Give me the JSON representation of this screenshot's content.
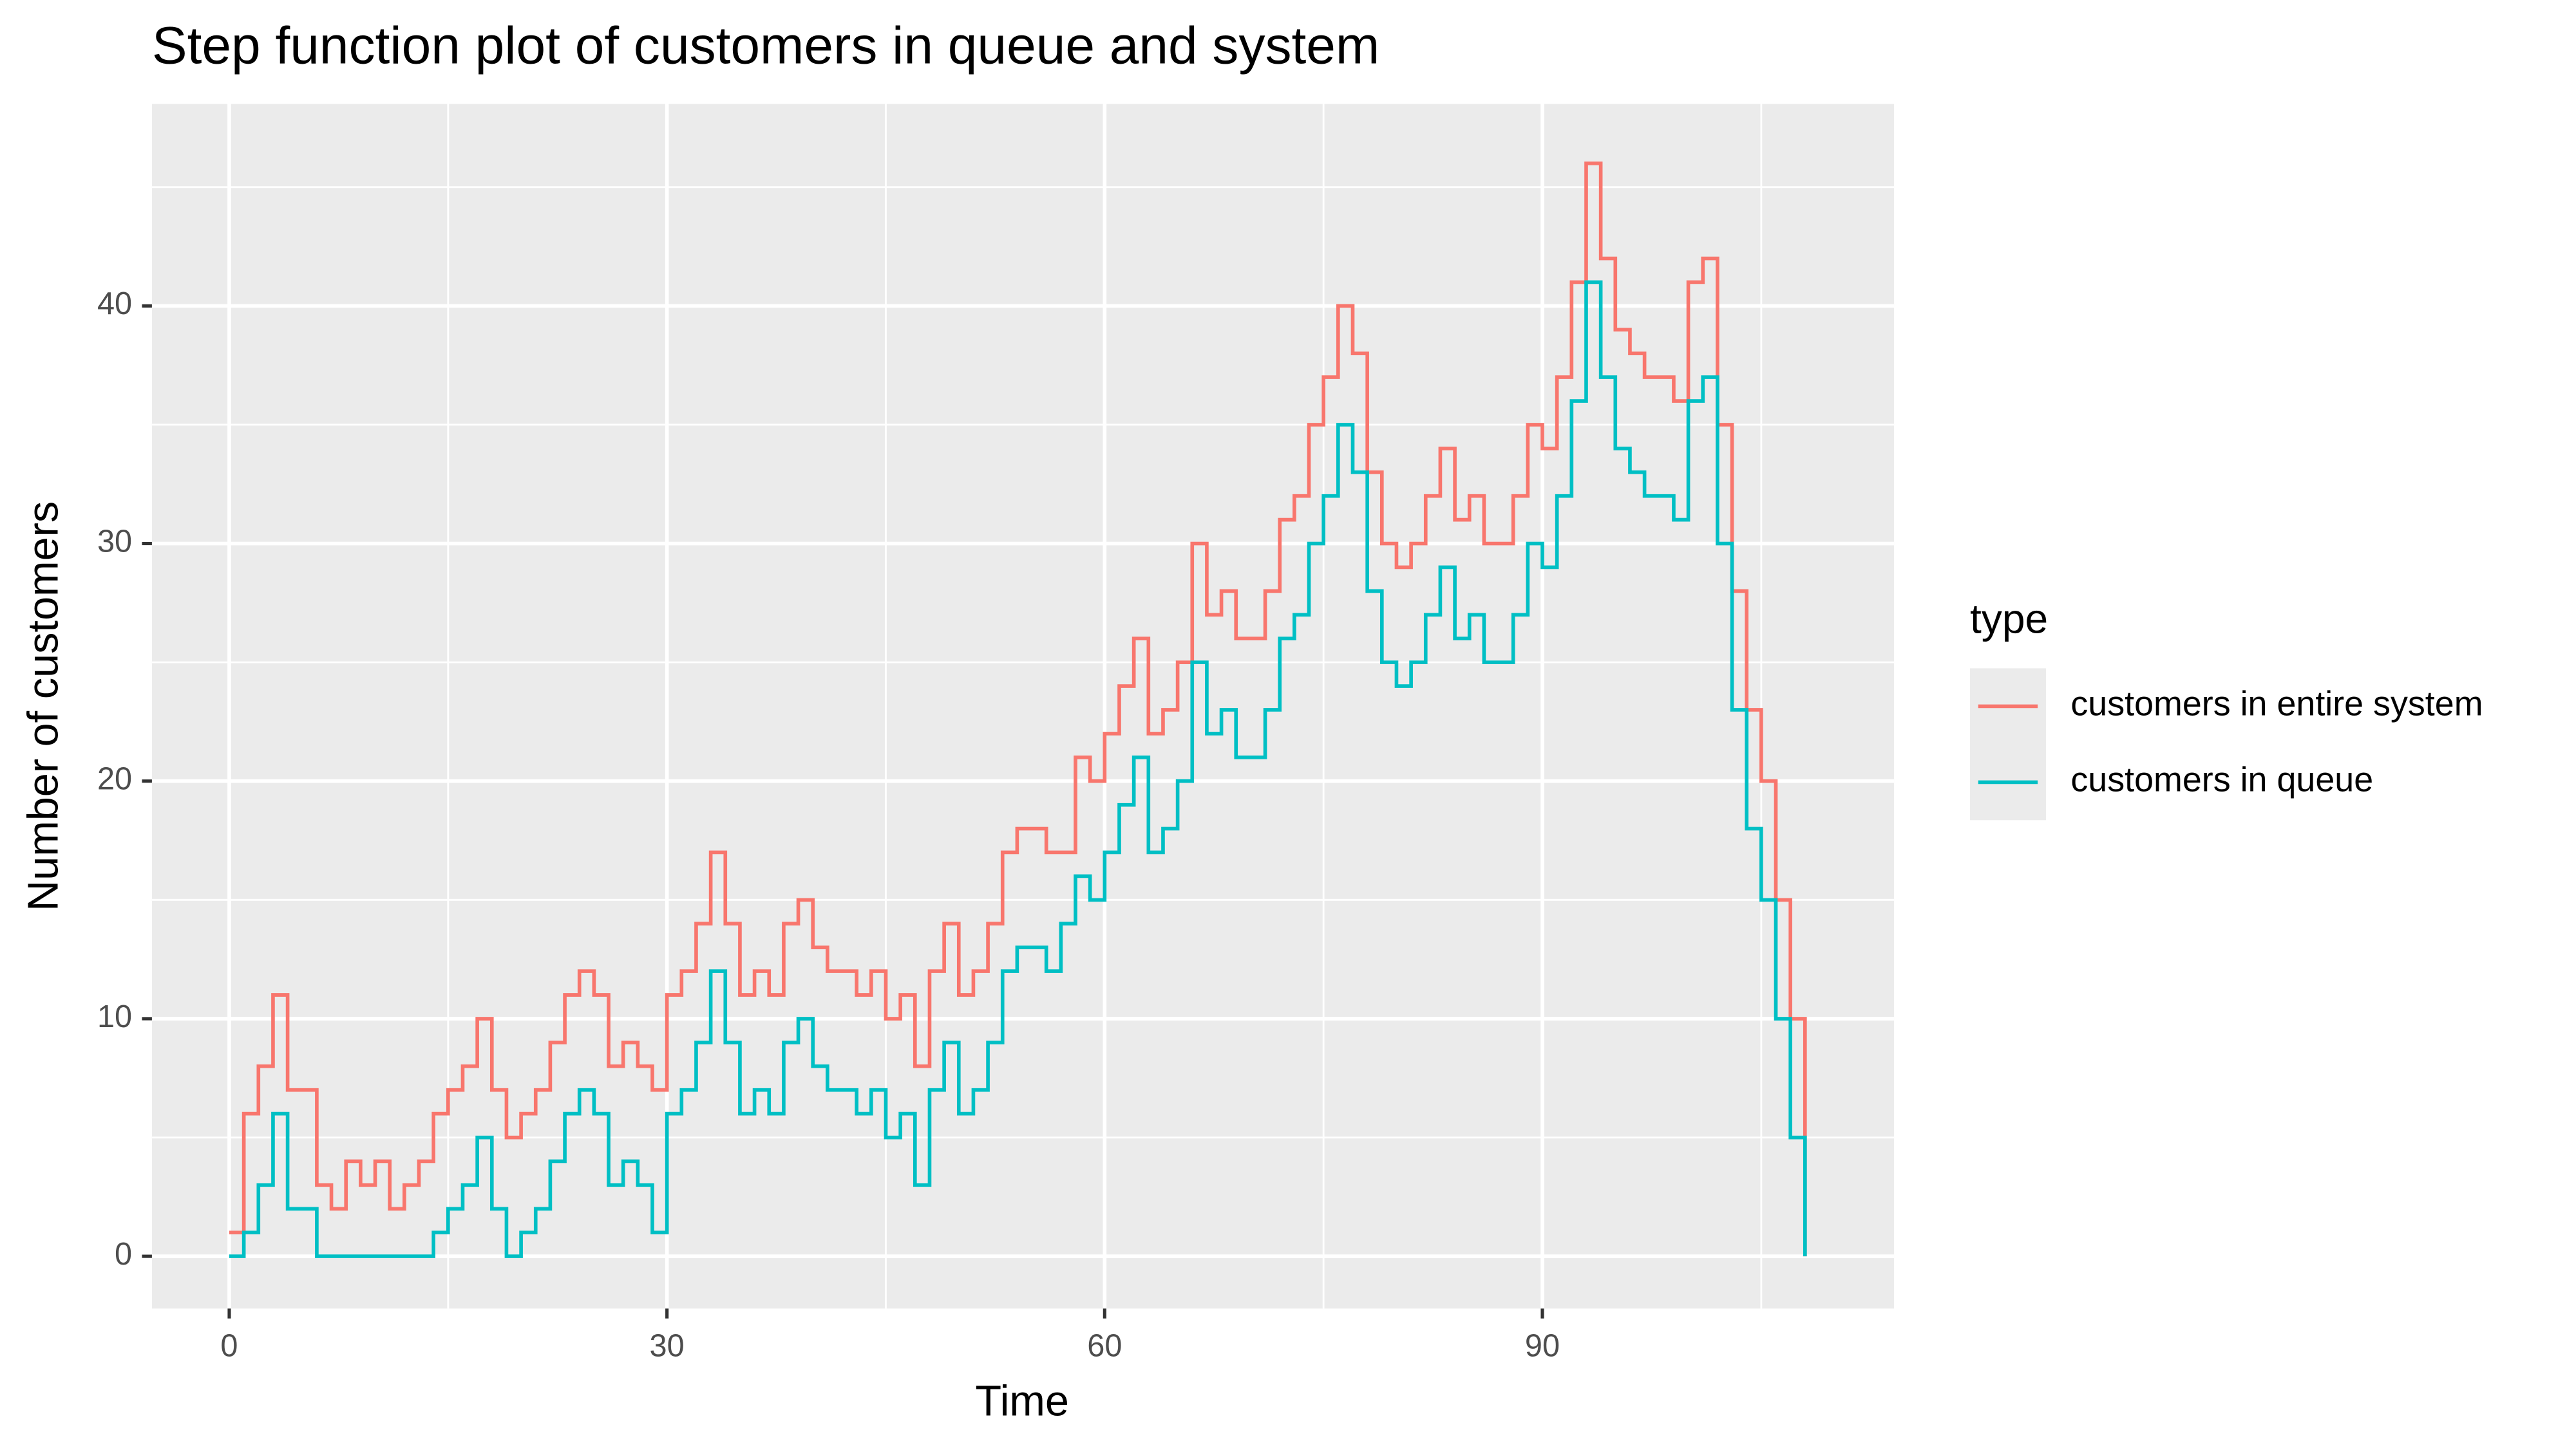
{
  "chart_data": {
    "type": "step",
    "title": "Step function plot of customers in queue and system",
    "x_label": "Time",
    "y_label": "Number of customers",
    "legend_title": "type",
    "legend": "right",
    "grid": true,
    "xlim": [
      -5.3,
      114.1
    ],
    "ylim": [
      -2.2,
      48.5
    ],
    "xticks": [
      0,
      30,
      60,
      90
    ],
    "yticks": [
      0,
      10,
      20,
      30,
      40
    ],
    "x": [
      0,
      1,
      2,
      3,
      4,
      5,
      6,
      7,
      8,
      9,
      10,
      11,
      12,
      13,
      14,
      15,
      16,
      17,
      18,
      19,
      20,
      21,
      22,
      23,
      24,
      25,
      26,
      27,
      28,
      29,
      30,
      31,
      32,
      33,
      34,
      35,
      36,
      37,
      38,
      39,
      40,
      41,
      42,
      43,
      44,
      45,
      46,
      47,
      48,
      49,
      50,
      51,
      52,
      53,
      54,
      55,
      56,
      57,
      58,
      59,
      60,
      61,
      62,
      63,
      64,
      65,
      66,
      67,
      68,
      69,
      70,
      71,
      72,
      73,
      74,
      75,
      76,
      77,
      78,
      79,
      80,
      81,
      82,
      83,
      84,
      85,
      86,
      87,
      88,
      89,
      90,
      91,
      92,
      93,
      94,
      95,
      96,
      97,
      98,
      99,
      100,
      101,
      102,
      103,
      104,
      105,
      106,
      107,
      108
    ],
    "series": [
      {
        "name": "customers in entire system",
        "color": "#F8766D",
        "values": [
          1,
          6,
          8,
          11,
          7,
          7,
          3,
          2,
          4,
          3,
          4,
          2,
          3,
          4,
          6,
          7,
          8,
          10,
          7,
          5,
          6,
          7,
          9,
          11,
          12,
          11,
          8,
          9,
          8,
          7,
          11,
          12,
          14,
          17,
          14,
          11,
          12,
          11,
          14,
          15,
          13,
          12,
          12,
          11,
          12,
          10,
          11,
          8,
          12,
          14,
          11,
          12,
          14,
          17,
          18,
          18,
          17,
          17,
          21,
          20,
          22,
          24,
          26,
          22,
          23,
          25,
          30,
          27,
          28,
          26,
          26,
          28,
          31,
          32,
          35,
          37,
          40,
          38,
          33,
          30,
          29,
          30,
          32,
          34,
          31,
          32,
          30,
          30,
          32,
          35,
          34,
          37,
          41,
          46,
          42,
          39,
          38,
          37,
          37,
          36,
          41,
          42,
          35,
          28,
          23,
          20,
          15,
          10,
          0
        ]
      },
      {
        "name": "customers in queue",
        "color": "#00BFC4",
        "values": [
          0,
          1,
          3,
          6,
          2,
          2,
          0,
          0,
          0,
          0,
          0,
          0,
          0,
          0,
          1,
          2,
          3,
          5,
          2,
          0,
          1,
          2,
          4,
          6,
          7,
          6,
          3,
          4,
          3,
          1,
          6,
          7,
          9,
          12,
          9,
          6,
          7,
          6,
          9,
          10,
          8,
          7,
          7,
          6,
          7,
          5,
          6,
          3,
          7,
          9,
          6,
          7,
          9,
          12,
          13,
          13,
          12,
          14,
          16,
          15,
          17,
          19,
          21,
          17,
          18,
          20,
          25,
          22,
          23,
          21,
          21,
          23,
          26,
          27,
          30,
          32,
          35,
          33,
          28,
          25,
          24,
          25,
          27,
          29,
          26,
          27,
          25,
          25,
          27,
          30,
          29,
          32,
          36,
          41,
          37,
          34,
          33,
          32,
          32,
          31,
          36,
          37,
          30,
          23,
          18,
          15,
          10,
          5,
          0
        ]
      }
    ]
  }
}
